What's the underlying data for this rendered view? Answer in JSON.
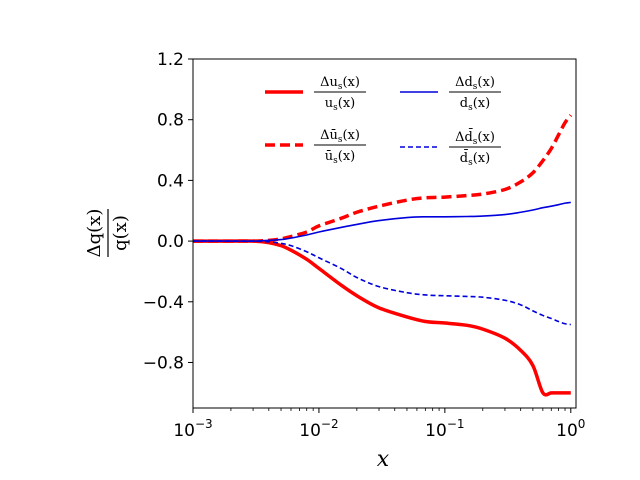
{
  "chart_data": {
    "type": "line",
    "xscale": "log",
    "xlim": [
      0.001,
      1.1
    ],
    "ylim": [
      -1.1,
      1.2
    ],
    "xlabel": "x",
    "ylabel": {
      "numerator": "Δq(x)",
      "denominator": "q(x)"
    },
    "yticks": [
      {
        "value": 1.2,
        "label": "1.2"
      },
      {
        "value": 0.8,
        "label": "0.8"
      },
      {
        "value": 0.4,
        "label": "0.4"
      },
      {
        "value": 0.0,
        "label": "0.0"
      },
      {
        "value": -0.4,
        "label": "−0.4"
      },
      {
        "value": -0.8,
        "label": "−0.8"
      }
    ],
    "xticks": [
      {
        "value": 0.001,
        "base": "10",
        "exp": "−3"
      },
      {
        "value": 0.01,
        "base": "10",
        "exp": "−2"
      },
      {
        "value": 0.1,
        "base": "10",
        "exp": "−1"
      },
      {
        "value": 1,
        "base": "10",
        "exp": "0"
      }
    ],
    "x": [
      0.001,
      0.002,
      0.003,
      0.004,
      0.005,
      0.006,
      0.008,
      0.01,
      0.015,
      0.02,
      0.03,
      0.05,
      0.07,
      0.1,
      0.15,
      0.2,
      0.3,
      0.4,
      0.5,
      0.6,
      0.7,
      0.8,
      0.9,
      1.0
    ],
    "series": [
      {
        "name": "u_s",
        "legend": {
          "num": "Δu",
          "den": "u"
        },
        "color": "#ff0000",
        "style": "solid",
        "width": "thick",
        "values": [
          0.0,
          0.0,
          0.0,
          -0.01,
          -0.03,
          -0.06,
          -0.12,
          -0.18,
          -0.29,
          -0.36,
          -0.44,
          -0.5,
          -0.53,
          -0.54,
          -0.555,
          -0.58,
          -0.64,
          -0.72,
          -0.82,
          -1.0,
          -1.0,
          -1.0,
          -1.0,
          -1.0
        ]
      },
      {
        "name": "ubar_s",
        "legend": {
          "num": "Δū",
          "den": "ū"
        },
        "color": "#ff0000",
        "style": "dashed",
        "width": "thick",
        "values": [
          0.0,
          0.0,
          0.0,
          0.005,
          0.015,
          0.03,
          0.06,
          0.1,
          0.15,
          0.19,
          0.23,
          0.27,
          0.285,
          0.29,
          0.3,
          0.31,
          0.34,
          0.39,
          0.45,
          0.53,
          0.61,
          0.7,
          0.78,
          0.83
        ]
      },
      {
        "name": "d_s",
        "legend": {
          "num": "Δd",
          "den": "d"
        },
        "color": "#0000dd",
        "style": "solid",
        "width": "thin",
        "values": [
          0.0,
          0.0,
          0.0,
          0.005,
          0.01,
          0.02,
          0.04,
          0.06,
          0.09,
          0.11,
          0.135,
          0.155,
          0.16,
          0.16,
          0.162,
          0.165,
          0.175,
          0.19,
          0.205,
          0.22,
          0.23,
          0.24,
          0.25,
          0.255
        ]
      },
      {
        "name": "dbar_s",
        "legend": {
          "num": "Δd̄",
          "den": "d̄"
        },
        "color": "#0000dd",
        "style": "dashed",
        "width": "thin",
        "values": [
          0.0,
          0.0,
          0.0,
          -0.005,
          -0.015,
          -0.03,
          -0.07,
          -0.11,
          -0.18,
          -0.24,
          -0.3,
          -0.34,
          -0.355,
          -0.36,
          -0.365,
          -0.37,
          -0.39,
          -0.42,
          -0.46,
          -0.49,
          -0.51,
          -0.53,
          -0.545,
          -0.55
        ]
      }
    ]
  }
}
